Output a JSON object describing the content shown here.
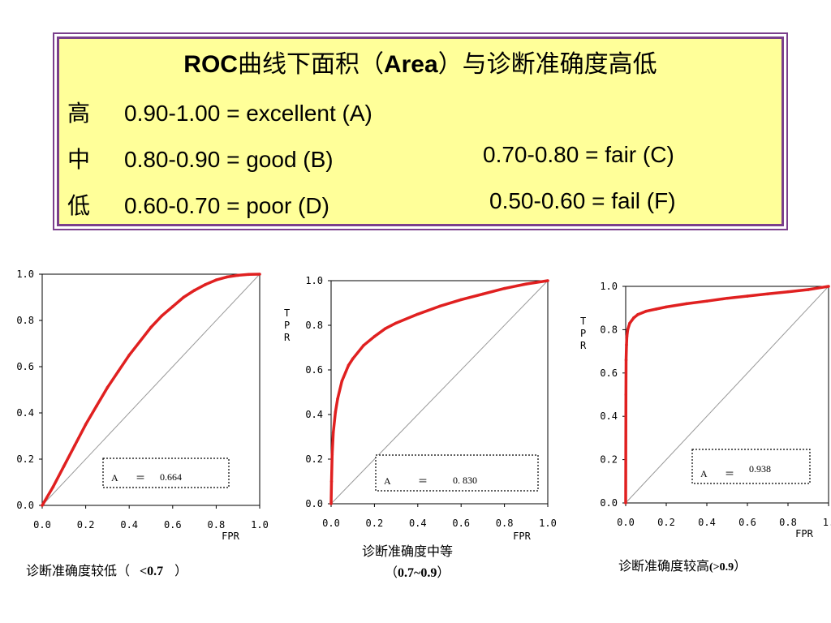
{
  "legend_box": {
    "title_part1": "ROC",
    "title_part2": "曲线下面积（",
    "title_part3": "Area",
    "title_part4": "）与诊断准确度高低",
    "rows": [
      {
        "level": "高",
        "a": "0.90-1.00 = excellent (A)",
        "b": ""
      },
      {
        "level": "中",
        "a": "0.80-0.90 = good (B)",
        "b": "0.70-0.80 = fair (C)"
      },
      {
        "level": "低",
        "a": "0.60-0.70 = poor (D)",
        "b": "0.50-0.60 = fail (F)"
      }
    ]
  },
  "colors": {
    "curve": "#e02020",
    "diagonal": "#999999",
    "panel_bg": "#ffff99",
    "panel_border": "#7a3f8c"
  },
  "chart_data": [
    {
      "type": "line",
      "x_ticks": [
        "0.0",
        "0.2",
        "0.4",
        "0.6",
        "0.8",
        "1.0"
      ],
      "y_ticks": [
        "0.0",
        "0.2",
        "0.4",
        "0.6",
        "0.8",
        "1.0"
      ],
      "xlabel": "FPR",
      "ylabel": "",
      "xlim": [
        0,
        1
      ],
      "ylim": [
        0,
        1
      ],
      "area_label": "A",
      "area_eq": "＝",
      "area_value": "0.664",
      "caption_text": "诊断准确度较低（",
      "caption_value": "<0.7",
      "caption_close": "）",
      "series": [
        {
          "x": [
            0,
            0.05,
            0.1,
            0.15,
            0.2,
            0.25,
            0.3,
            0.35,
            0.4,
            0.45,
            0.5,
            0.55,
            0.6,
            0.65,
            0.7,
            0.75,
            0.8,
            0.85,
            0.9,
            0.95,
            1.0
          ],
          "y": [
            0,
            0.08,
            0.17,
            0.26,
            0.35,
            0.43,
            0.51,
            0.58,
            0.65,
            0.71,
            0.77,
            0.82,
            0.86,
            0.9,
            0.93,
            0.955,
            0.975,
            0.988,
            0.995,
            0.999,
            1.0
          ]
        }
      ],
      "diagonal": true
    },
    {
      "type": "line",
      "x_ticks": [
        "0.0",
        "0.2",
        "0.4",
        "0.6",
        "0.8",
        "1.0"
      ],
      "y_ticks": [
        "0.0",
        "0.2",
        "0.4",
        "0.6",
        "0.8",
        "1.0"
      ],
      "xlabel": "FPR",
      "ylabel": "TPR",
      "xlim": [
        0,
        1
      ],
      "ylim": [
        0,
        1
      ],
      "area_label": "A",
      "area_eq": "＝",
      "area_value": "0. 830",
      "caption_text": "诊断准确度中等",
      "caption_open": "（",
      "caption_value": "0.7~0.9",
      "caption_close": "）",
      "series": [
        {
          "x": [
            0,
            0.002,
            0.005,
            0.01,
            0.02,
            0.03,
            0.05,
            0.08,
            0.1,
            0.15,
            0.2,
            0.25,
            0.3,
            0.4,
            0.5,
            0.6,
            0.7,
            0.8,
            0.9,
            1.0
          ],
          "y": [
            0,
            0.1,
            0.22,
            0.32,
            0.41,
            0.47,
            0.55,
            0.62,
            0.65,
            0.71,
            0.75,
            0.785,
            0.81,
            0.85,
            0.885,
            0.915,
            0.94,
            0.965,
            0.985,
            1.0
          ]
        }
      ],
      "diagonal": true
    },
    {
      "type": "line",
      "x_ticks": [
        "0.0",
        "0.2",
        "0.4",
        "0.6",
        "0.8",
        "1."
      ],
      "y_ticks": [
        "0.0",
        "0.2",
        "0.4",
        "0.6",
        "0.8",
        "1.0"
      ],
      "xlabel": "FPR",
      "ylabel": "TPR",
      "xlim": [
        0,
        1
      ],
      "ylim": [
        0,
        1
      ],
      "area_label": "A",
      "area_eq": "＝",
      "area_value": "0.938",
      "caption_text": "诊断准确度较高",
      "caption_value": "(>0.9",
      "caption_close": "）",
      "series": [
        {
          "x": [
            0,
            0.001,
            0.002,
            0.004,
            0.006,
            0.01,
            0.02,
            0.04,
            0.06,
            0.1,
            0.15,
            0.2,
            0.3,
            0.4,
            0.5,
            0.6,
            0.7,
            0.8,
            0.9,
            1.0
          ],
          "y": [
            0,
            0.5,
            0.66,
            0.73,
            0.77,
            0.8,
            0.83,
            0.855,
            0.87,
            0.885,
            0.895,
            0.905,
            0.92,
            0.932,
            0.945,
            0.955,
            0.965,
            0.975,
            0.985,
            1.0
          ]
        }
      ],
      "diagonal": true
    }
  ]
}
